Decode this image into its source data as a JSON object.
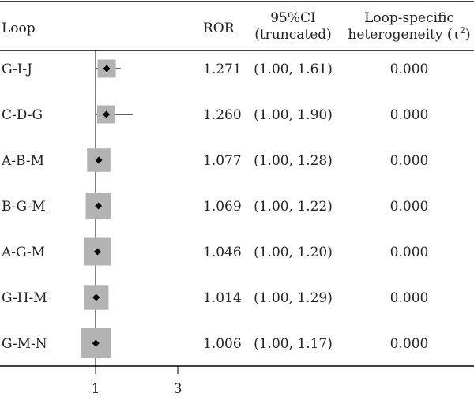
{
  "chart_data": {
    "type": "table",
    "headers": {
      "loop": "Loop",
      "ror": "ROR",
      "ci_line1": "95%CI",
      "ci_line2": "(truncated)",
      "het_line1": "Loop-specific",
      "het_line2": "heterogeneity (τ",
      "het_sup": "2",
      "het_close": ")"
    },
    "rows": [
      {
        "loop": "G-I-J",
        "ror": 1.271,
        "ci_low": 1.0,
        "ci_high": 1.61,
        "ror_text": "1.271",
        "ci_text": "(1.00, 1.61)",
        "tau2": "0.000"
      },
      {
        "loop": "C-D-G",
        "ror": 1.26,
        "ci_low": 1.0,
        "ci_high": 1.9,
        "ror_text": "1.260",
        "ci_text": "(1.00, 1.90)",
        "tau2": "0.000"
      },
      {
        "loop": "A-B-M",
        "ror": 1.077,
        "ci_low": 1.0,
        "ci_high": 1.28,
        "ror_text": "1.077",
        "ci_text": "(1.00, 1.28)",
        "tau2": "0.000"
      },
      {
        "loop": "B-G-M",
        "ror": 1.069,
        "ci_low": 1.0,
        "ci_high": 1.22,
        "ror_text": "1.069",
        "ci_text": "(1.00, 1.22)",
        "tau2": "0.000"
      },
      {
        "loop": "A-G-M",
        "ror": 1.046,
        "ci_low": 1.0,
        "ci_high": 1.2,
        "ror_text": "1.046",
        "ci_text": "(1.00, 1.20)",
        "tau2": "0.000"
      },
      {
        "loop": "G-H-M",
        "ror": 1.014,
        "ci_low": 1.0,
        "ci_high": 1.29,
        "ror_text": "1.014",
        "ci_text": "(1.00, 1.29)",
        "tau2": "0.000"
      },
      {
        "loop": "G-M-N",
        "ror": 1.006,
        "ci_low": 1.0,
        "ci_high": 1.17,
        "ror_text": "1.006",
        "ci_text": "(1.00, 1.17)",
        "tau2": "0.000"
      }
    ],
    "x_ticks": [
      1,
      3
    ],
    "x_tick_labels": [
      "1",
      "3"
    ],
    "reference_line": 1,
    "box_weights": [
      0.3,
      0.3,
      0.52,
      0.6,
      0.7,
      0.58,
      0.8
    ],
    "colors": {
      "box": "#b3b3b3",
      "line": "#000000",
      "text": "#222222"
    }
  }
}
